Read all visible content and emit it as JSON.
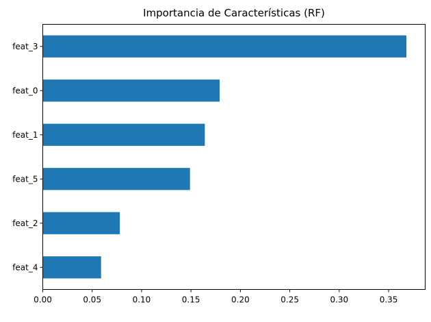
{
  "chart_data": {
    "type": "bar",
    "orientation": "horizontal",
    "title": "Importancia de Características (RF)",
    "xlabel": "",
    "ylabel": "",
    "categories": [
      "feat_3",
      "feat_0",
      "feat_1",
      "feat_5",
      "feat_2",
      "feat_4"
    ],
    "values": [
      0.368,
      0.179,
      0.164,
      0.149,
      0.078,
      0.059
    ],
    "xlim": [
      0,
      0.387
    ],
    "xticks": [
      "0.00",
      "0.05",
      "0.10",
      "0.15",
      "0.20",
      "0.25",
      "0.30",
      "0.35"
    ],
    "bar_color": "#1f77b4",
    "grid": false,
    "legend": "none"
  }
}
